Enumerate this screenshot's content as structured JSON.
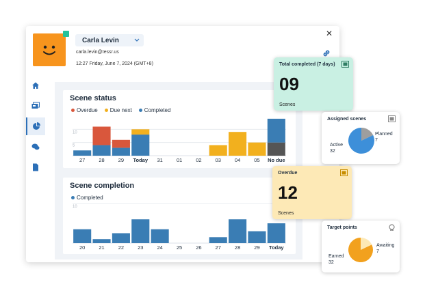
{
  "user": {
    "name": "Carla Levin",
    "email": "carla.levin@tessr.us",
    "datetime": "12:27 Friday, June 7, 2024 (GMT+8)"
  },
  "icons": {
    "close": "close-icon",
    "link": "link-icon",
    "nav": [
      "home-icon",
      "cards-icon",
      "pie-chart-icon",
      "chat-icon",
      "document-icon"
    ]
  },
  "colors": {
    "overdue": "#d9573c",
    "due_next": "#f2b01e",
    "completed": "#3a7db4",
    "no_due_dark": "#555555",
    "accent": "#2c6fb7"
  },
  "scene_status": {
    "title": "Scene status",
    "legend": [
      "Overdue",
      "Due next",
      "Completed"
    ]
  },
  "scene_completion": {
    "title": "Scene completion",
    "legend": [
      "Completed"
    ]
  },
  "cards": {
    "total": {
      "title": "Total completed (7 days)",
      "value": "09",
      "sub": "Scenes"
    },
    "assigned": {
      "title": "Assigned scenes",
      "active_label": "Active",
      "active_value": "32",
      "planned_label": "Planned",
      "planned_value": "7"
    },
    "overdue": {
      "title": "Overdue",
      "value": "12",
      "sub": "Scenes"
    },
    "points": {
      "title": "Target points",
      "earned_label": "Earned",
      "earned_value": "32",
      "awaiting_label": "Awaiting",
      "awaiting_value": "7"
    }
  },
  "chart_data": [
    {
      "type": "bar",
      "title": "Scene status",
      "categories": [
        "27",
        "28",
        "29",
        "Today",
        "31",
        "01",
        "02",
        "03",
        "04",
        "05",
        "No due"
      ],
      "series": [
        {
          "name": "Completed",
          "values": [
            2,
            4,
            3,
            8,
            0,
            0,
            0,
            0,
            0,
            0,
            14
          ]
        },
        {
          "name": "Overdue",
          "values": [
            0,
            7,
            3,
            0,
            0,
            0,
            0,
            0,
            0,
            0,
            0
          ]
        },
        {
          "name": "Due next",
          "values": [
            0,
            0,
            0,
            2,
            0,
            0,
            0,
            4,
            9,
            5,
            0
          ]
        }
      ],
      "no_due_dark": 5,
      "ylim": [
        0,
        15
      ],
      "y_ticks": [
        "10",
        "5"
      ],
      "grid": true
    },
    {
      "type": "bar",
      "title": "Scene completion",
      "categories": [
        "20",
        "21",
        "22",
        "23",
        "24",
        "25",
        "26",
        "27",
        "28",
        "29",
        "Today"
      ],
      "series": [
        {
          "name": "Completed",
          "values": [
            3.5,
            1,
            2.5,
            6,
            3.5,
            0,
            0,
            1.5,
            6,
            3,
            5
          ]
        }
      ],
      "ylim": [
        0,
        10
      ],
      "y_ticks": [
        "10"
      ],
      "grid": true
    },
    {
      "type": "pie",
      "title": "Assigned scenes",
      "categories": [
        "Active",
        "Planned"
      ],
      "values": [
        32,
        7
      ]
    },
    {
      "type": "pie",
      "title": "Target points",
      "categories": [
        "Earned",
        "Awaiting"
      ],
      "values": [
        32,
        7
      ]
    }
  ]
}
